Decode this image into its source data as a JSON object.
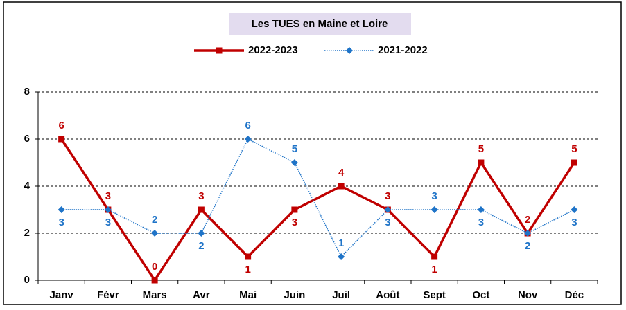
{
  "chart_data": {
    "type": "line",
    "title": "Les TUES en Maine et Loire",
    "categories": [
      "Janv",
      "Févr",
      "Mars",
      "Avr",
      "Mai",
      "Juin",
      "Juil",
      "Août",
      "Sept",
      "Oct",
      "Nov",
      "Déc"
    ],
    "series": [
      {
        "name": "2022-2023",
        "color": "#c00000",
        "values": [
          6,
          3,
          0,
          3,
          1,
          3,
          4,
          3,
          1,
          5,
          2,
          5
        ]
      },
      {
        "name": "2021-2022",
        "color": "#1f74c8",
        "values": [
          3,
          3,
          2,
          2,
          6,
          5,
          1,
          3,
          3,
          3,
          2,
          3
        ]
      }
    ],
    "ylim": [
      0,
      8
    ],
    "yticks": [
      0,
      2,
      4,
      6,
      8
    ],
    "grid": true,
    "legend": "top"
  }
}
